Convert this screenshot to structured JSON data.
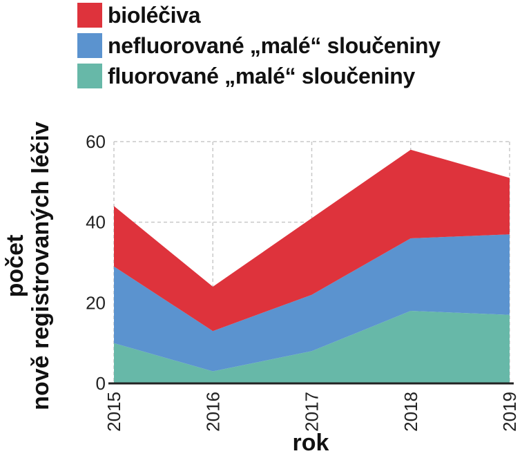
{
  "colors": {
    "biolecive": "#de333c",
    "nefluorovane": "#5b93cf",
    "fluorovane": "#67b8a8",
    "grid": "#c8c8c8",
    "axis": "#222222"
  },
  "legend": [
    {
      "label": "bioléčiva",
      "color": "#de333c"
    },
    {
      "label": "nefluorované „malé“ sloučeniny",
      "color": "#5b93cf"
    },
    {
      "label": "fluorované „malé“ sloučeniny",
      "color": "#67b8a8"
    }
  ],
  "chart_data": {
    "type": "area",
    "stacked": true,
    "x": [
      "2015",
      "2016",
      "2017",
      "2018",
      "2019"
    ],
    "series": [
      {
        "name": "fluorované „malé“ sloučeniny",
        "values": [
          10,
          3,
          8,
          18,
          17
        ],
        "color": "#67b8a8"
      },
      {
        "name": "nefluorované „malé“ sloučeniny",
        "values": [
          19,
          10,
          14,
          18,
          20
        ],
        "color": "#5b93cf"
      },
      {
        "name": "bioléčiva",
        "values": [
          15,
          11,
          19,
          22,
          14
        ],
        "color": "#de333c"
      }
    ],
    "ylabel_line1": "počet",
    "ylabel_line2": "nově registrovaných léčiv",
    "xlabel": "rok",
    "ylim": [
      0,
      60
    ],
    "yticks": [
      "0",
      "20",
      "40",
      "60"
    ],
    "grid": true,
    "legend_position": "top"
  }
}
